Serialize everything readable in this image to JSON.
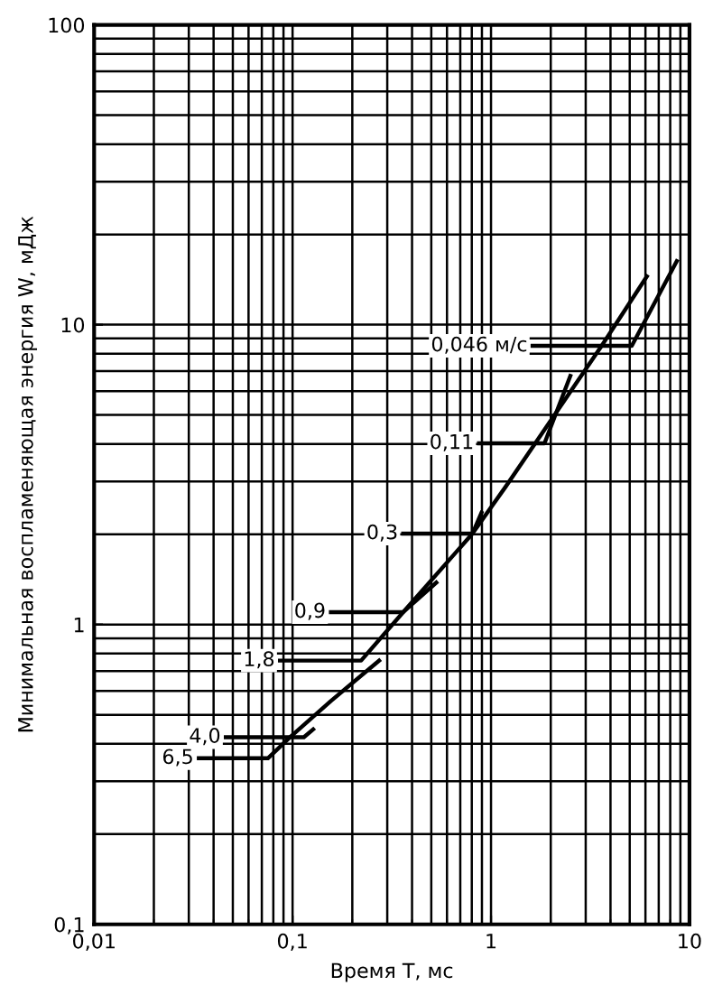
{
  "chart_data": {
    "type": "line",
    "xlabel": "Время T, мс",
    "ylabel": "Минимальная воспламеняющая энергия W, мДж",
    "log": "xy",
    "grid": true,
    "marker": "none",
    "line_style": "solid",
    "xlim": [
      0.01,
      10
    ],
    "ylim": [
      0.1,
      100
    ],
    "xticks": [
      {
        "value": 0.01,
        "label": "0,01"
      },
      {
        "value": 0.1,
        "label": "0,1"
      },
      1,
      10
    ],
    "yticks": [
      {
        "value": 0.1,
        "label": "0,1"
      },
      1,
      10,
      100
    ],
    "series": [
      {
        "name": "0,046 м/с",
        "color": "#000000",
        "x": [
          1.62,
          5.12,
          8.63
        ],
        "values": [
          8.5,
          8.5,
          16.3
        ]
      },
      {
        "name": "0,11",
        "color": "#000000",
        "x": [
          0.87,
          1.86,
          2.51
        ],
        "values": [
          4.02,
          4.02,
          6.75
        ]
      },
      {
        "name": "0,3",
        "color": "#000000",
        "x": [
          0.361,
          0.806,
          0.895
        ],
        "values": [
          2.01,
          2.01,
          2.36
        ]
      },
      {
        "name": "0,9",
        "color": "#000000",
        "x": [
          0.156,
          0.361,
          0.53
        ],
        "values": [
          1.1,
          1.1,
          1.38
        ]
      },
      {
        "name": "1,8",
        "color": "#000000",
        "x": [
          0.0864,
          0.2215,
          0.361,
          0.806,
          1.18,
          3.61,
          6.1
        ],
        "values": [
          0.758,
          0.758,
          1.1,
          2.01,
          2.87,
          8.5,
          14.5
        ]
      },
      {
        "name": "4,0",
        "color": "#000000",
        "x": [
          0.0461,
          0.114,
          0.127
        ],
        "values": [
          0.421,
          0.421,
          0.447
        ]
      },
      {
        "name": "6,5",
        "color": "#000000",
        "x": [
          0.0337,
          0.0751,
          0.0972,
          0.156,
          0.273
        ],
        "values": [
          0.358,
          0.358,
          0.421,
          0.556,
          0.758
        ]
      }
    ]
  }
}
